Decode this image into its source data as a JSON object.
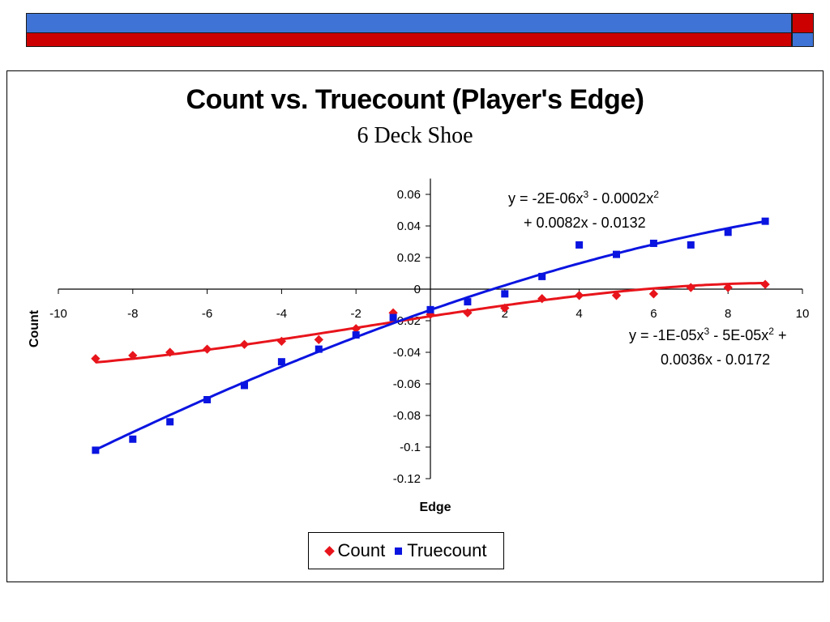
{
  "colors": {
    "bar_blue": "#3f74d6",
    "bar_red": "#cc0000",
    "count_series": "#e8141b",
    "truecount_series": "#0a14e0",
    "axis": "#000000"
  },
  "chart_data": {
    "type": "scatter",
    "title": "Count vs. Truecount (Player's Edge)",
    "subtitle": "6 Deck Shoe",
    "xlabel": "Edge",
    "ylabel": "Count",
    "xlim": [
      -10,
      10
    ],
    "ylim": [
      -0.12,
      0.07
    ],
    "x_ticks": [
      -10,
      -8,
      -6,
      -4,
      -2,
      2,
      4,
      6,
      8,
      10
    ],
    "y_ticks": [
      0.06,
      0.04,
      0.02,
      0,
      -0.02,
      -0.04,
      -0.06,
      -0.08,
      -0.1,
      -0.12
    ],
    "legend_position": "bottom-center",
    "series": [
      {
        "name": "Count",
        "marker": "diamond",
        "x": [
          -9,
          -8,
          -7,
          -6,
          -5,
          -4,
          -3,
          -2,
          -1,
          0,
          1,
          2,
          3,
          4,
          5,
          6,
          7,
          8,
          9
        ],
        "y": [
          -0.044,
          -0.042,
          -0.04,
          -0.038,
          -0.035,
          -0.033,
          -0.032,
          -0.025,
          -0.015,
          -0.016,
          -0.015,
          -0.012,
          -0.006,
          -0.004,
          -0.004,
          -0.003,
          0.001,
          0.001,
          0.003
        ],
        "trendline": {
          "equation": "y = -1E-05x³ - 5E-05x² + 0.0036x - 0.0172",
          "coefficients": [
            -1e-05,
            -5e-05,
            0.0036,
            -0.0172
          ]
        }
      },
      {
        "name": "Truecount",
        "marker": "square",
        "x": [
          -9,
          -8,
          -7,
          -6,
          -5,
          -4,
          -3,
          -2,
          -1,
          0,
          1,
          2,
          3,
          4,
          5,
          6,
          7,
          8,
          9
        ],
        "y": [
          -0.102,
          -0.095,
          -0.084,
          -0.07,
          -0.061,
          -0.046,
          -0.038,
          -0.029,
          -0.018,
          -0.013,
          -0.008,
          -0.003,
          0.008,
          0.028,
          0.022,
          0.029,
          0.028,
          0.036,
          0.043
        ],
        "trendline": {
          "equation": "y = -2E-06x³ - 0.0002x² + 0.0082x - 0.0132",
          "coefficients": [
            -2e-06,
            -0.0002,
            0.0082,
            -0.0132
          ]
        }
      }
    ],
    "annotations": {
      "truecount_eq_line1": "y = -2E-06x",
      "truecount_eq_sup1": "3",
      "truecount_eq_mid": " - 0.0002x",
      "truecount_eq_sup2": "2",
      "truecount_eq_line2": "+ 0.0082x - 0.0132",
      "count_eq_line1": "y = -1E-05x",
      "count_eq_sup1": "3",
      "count_eq_mid": " - 5E-05x",
      "count_eq_sup2": "2",
      "count_eq_tail": " +",
      "count_eq_line2": "0.0036x - 0.0172"
    }
  }
}
